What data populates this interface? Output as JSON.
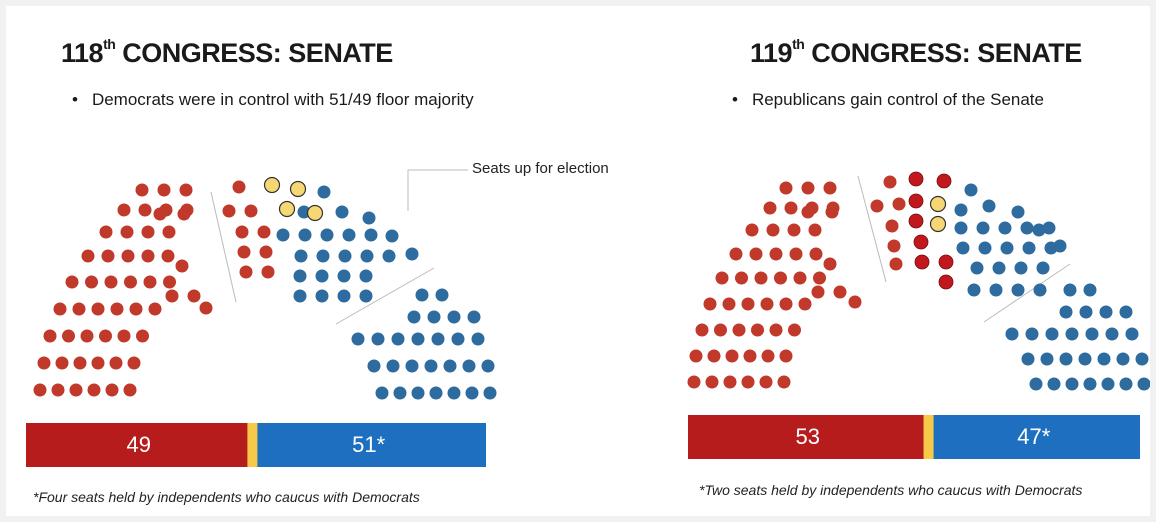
{
  "colors": {
    "republican": "#c0392b",
    "democrat": "#2e6b9e",
    "flip": "#c0181d",
    "election": "#f7d774",
    "bar_rep": "#b71c1c",
    "bar_dem": "#1e6fbf",
    "bar_divider": "#f7c948"
  },
  "annotation": "Seats up for election",
  "chart_data": [
    {
      "type": "parliament",
      "title_prefix": "118",
      "title_sup": "th",
      "title_rest": " CONGRESS: SENATE",
      "bullet": "Democrats were in control with 51/49 floor majority",
      "seats": {
        "republican": 49,
        "democrat": 51,
        "up_for_election": 4
      },
      "bar": {
        "rep_label": "49",
        "dem_label": "51*",
        "rep_value": 49,
        "dem_value": 51
      },
      "footnote": "*Four seats held by independents who caucus with Democrats"
    },
    {
      "type": "parliament",
      "title_prefix": "119",
      "title_sup": "th",
      "title_rest": " CONGRESS: SENATE",
      "bullet": "Republicans gain control of the Senate",
      "seats": {
        "republican": 53,
        "democrat": 47,
        "flipped_to_republican": 4,
        "up_for_election": 2
      },
      "bar": {
        "rep_label": "53",
        "dem_label": "47*",
        "rep_value": 53,
        "dem_value": 47
      },
      "footnote": "*Two seats held by independents who caucus with Democrats"
    }
  ]
}
